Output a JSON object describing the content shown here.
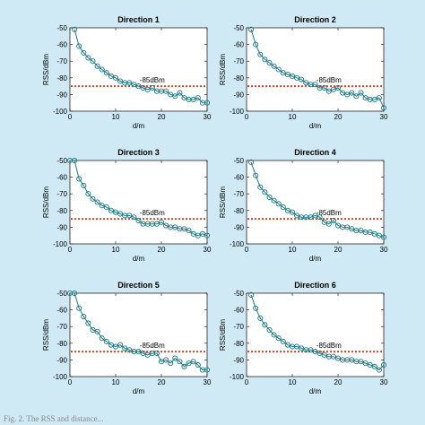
{
  "caption": "Fig. 2. The RSS and distance...",
  "style": {
    "figure_background": "#cfe9f5",
    "axes_background": "#ffffff",
    "series_color": "#1a7a86",
    "threshold_color": "#d9431e",
    "axis_color": "#262626",
    "marker": "open-circle",
    "threshold_linestyle": "dotted"
  },
  "chart_data": [
    {
      "type": "line",
      "title": "Direction 1",
      "xlabel": "d/m",
      "ylabel": "RSS/dBm",
      "xlim": [
        0,
        30
      ],
      "ylim": [
        -100,
        -50
      ],
      "xticks": [
        0,
        10,
        20,
        30
      ],
      "yticks": [
        -50,
        -60,
        -70,
        -80,
        -90,
        -100
      ],
      "grid": false,
      "threshold": {
        "value": -85,
        "label": "-85dBm"
      },
      "x": [
        1,
        2,
        3,
        4,
        5,
        6,
        7,
        8,
        9,
        10,
        11,
        12,
        13,
        14,
        15,
        16,
        17,
        18,
        19,
        20,
        21,
        22,
        23,
        24,
        25,
        26,
        27,
        28,
        29,
        30
      ],
      "y": [
        -51,
        -61,
        -65,
        -68,
        -70,
        -73,
        -75,
        -77,
        -79,
        -80,
        -82,
        -83,
        -83,
        -84,
        -85,
        -86,
        -87,
        -86,
        -88,
        -88,
        -88,
        -90,
        -91,
        -89,
        -92,
        -93,
        -93,
        -92,
        -95,
        -95
      ]
    },
    {
      "type": "line",
      "title": "Direction 2",
      "xlabel": "d/m",
      "ylabel": "RSS/dBm",
      "xlim": [
        0,
        30
      ],
      "ylim": [
        -100,
        -50
      ],
      "xticks": [
        0,
        10,
        20,
        30
      ],
      "yticks": [
        -50,
        -60,
        -70,
        -80,
        -90,
        -100
      ],
      "grid": false,
      "threshold": {
        "value": -85,
        "label": "-85dBm"
      },
      "x": [
        1,
        2,
        3,
        4,
        5,
        6,
        7,
        8,
        9,
        10,
        11,
        12,
        13,
        14,
        15,
        16,
        17,
        18,
        19,
        20,
        21,
        22,
        23,
        24,
        25,
        26,
        27,
        28,
        29,
        30
      ],
      "y": [
        -51,
        -60,
        -66,
        -69,
        -71,
        -73,
        -75,
        -77,
        -78,
        -79,
        -80,
        -81,
        -83,
        -84,
        -84,
        -86,
        -86,
        -88,
        -87,
        -86,
        -89,
        -90,
        -89,
        -91,
        -89,
        -92,
        -93,
        -93,
        -92,
        -98
      ]
    },
    {
      "type": "line",
      "title": "Direction 3",
      "xlabel": "d/m",
      "ylabel": "RSS/dBm",
      "xlim": [
        0,
        30
      ],
      "ylim": [
        -100,
        -50
      ],
      "xticks": [
        0,
        10,
        20,
        30
      ],
      "yticks": [
        -50,
        -60,
        -70,
        -80,
        -90,
        -100
      ],
      "grid": false,
      "threshold": {
        "value": -85,
        "label": "-85dBm"
      },
      "x": [
        0,
        1,
        2,
        3,
        4,
        5,
        6,
        7,
        8,
        9,
        10,
        11,
        12,
        13,
        14,
        15,
        16,
        17,
        18,
        19,
        20,
        21,
        22,
        23,
        24,
        25,
        26,
        27,
        28,
        29,
        30
      ],
      "y": [
        -50,
        -50,
        -61,
        -65,
        -70,
        -73,
        -75,
        -77,
        -78,
        -80,
        -81,
        -82,
        -83,
        -83,
        -84,
        -86,
        -88,
        -88,
        -88,
        -88,
        -87,
        -89,
        -90,
        -90,
        -91,
        -91,
        -92,
        -94,
        -95,
        -94,
        -95
      ]
    },
    {
      "type": "line",
      "title": "Direction 4",
      "xlabel": "d/m",
      "ylabel": "RSS/dBm",
      "xlim": [
        0,
        30
      ],
      "ylim": [
        -100,
        -50
      ],
      "xticks": [
        0,
        10,
        20,
        30
      ],
      "yticks": [
        -50,
        -60,
        -70,
        -80,
        -90,
        -100
      ],
      "grid": false,
      "threshold": {
        "value": -85,
        "label": "-85dBm"
      },
      "x": [
        1,
        2,
        3,
        4,
        5,
        6,
        7,
        8,
        9,
        10,
        11,
        12,
        13,
        14,
        15,
        16,
        17,
        18,
        19,
        20,
        21,
        22,
        23,
        24,
        25,
        26,
        27,
        28,
        29,
        30
      ],
      "y": [
        -51,
        -59,
        -66,
        -69,
        -72,
        -74,
        -76,
        -78,
        -80,
        -81,
        -83,
        -84,
        -84,
        -84,
        -83,
        -84,
        -87,
        -88,
        -86,
        -89,
        -90,
        -90,
        -91,
        -92,
        -92,
        -93,
        -93,
        -94,
        -95,
        -96
      ]
    },
    {
      "type": "line",
      "title": "Direction 5",
      "xlabel": "d/m",
      "ylabel": "RSS/dBm",
      "xlim": [
        0,
        30
      ],
      "ylim": [
        -100,
        -50
      ],
      "xticks": [
        0,
        10,
        20,
        30
      ],
      "yticks": [
        -50,
        -60,
        -70,
        -80,
        -90,
        -100
      ],
      "grid": false,
      "threshold": {
        "value": -85,
        "label": "-85dBm"
      },
      "x": [
        0,
        1,
        2,
        3,
        4,
        5,
        6,
        7,
        8,
        9,
        10,
        11,
        12,
        13,
        14,
        15,
        16,
        17,
        18,
        19,
        20,
        21,
        22,
        23,
        24,
        25,
        26,
        27,
        28,
        29,
        30
      ],
      "y": [
        -50,
        -50,
        -59,
        -64,
        -68,
        -72,
        -73,
        -77,
        -79,
        -81,
        -82,
        -81,
        -83,
        -84,
        -85,
        -85,
        -86,
        -87,
        -86,
        -86,
        -91,
        -90,
        -92,
        -89,
        -91,
        -94,
        -92,
        -91,
        -93,
        -96,
        -96
      ]
    },
    {
      "type": "line",
      "title": "Direction 6",
      "xlabel": "d/m",
      "ylabel": "RSS/dBm",
      "xlim": [
        0,
        30
      ],
      "ylim": [
        -100,
        -50
      ],
      "xticks": [
        0,
        10,
        20,
        30
      ],
      "yticks": [
        -50,
        -60,
        -70,
        -80,
        -90,
        -100
      ],
      "grid": false,
      "threshold": {
        "value": -85,
        "label": "-85dBm"
      },
      "x": [
        1,
        2,
        3,
        4,
        5,
        6,
        7,
        8,
        9,
        10,
        11,
        12,
        13,
        14,
        15,
        16,
        17,
        18,
        19,
        20,
        21,
        22,
        23,
        24,
        25,
        26,
        27,
        28,
        29,
        30
      ],
      "y": [
        -51,
        -59,
        -65,
        -69,
        -72,
        -75,
        -77,
        -79,
        -81,
        -82,
        -82,
        -83,
        -84,
        -84,
        -85,
        -86,
        -87,
        -88,
        -88,
        -89,
        -90,
        -90,
        -90,
        -91,
        -91,
        -92,
        -93,
        -94,
        -96,
        -93
      ]
    }
  ]
}
